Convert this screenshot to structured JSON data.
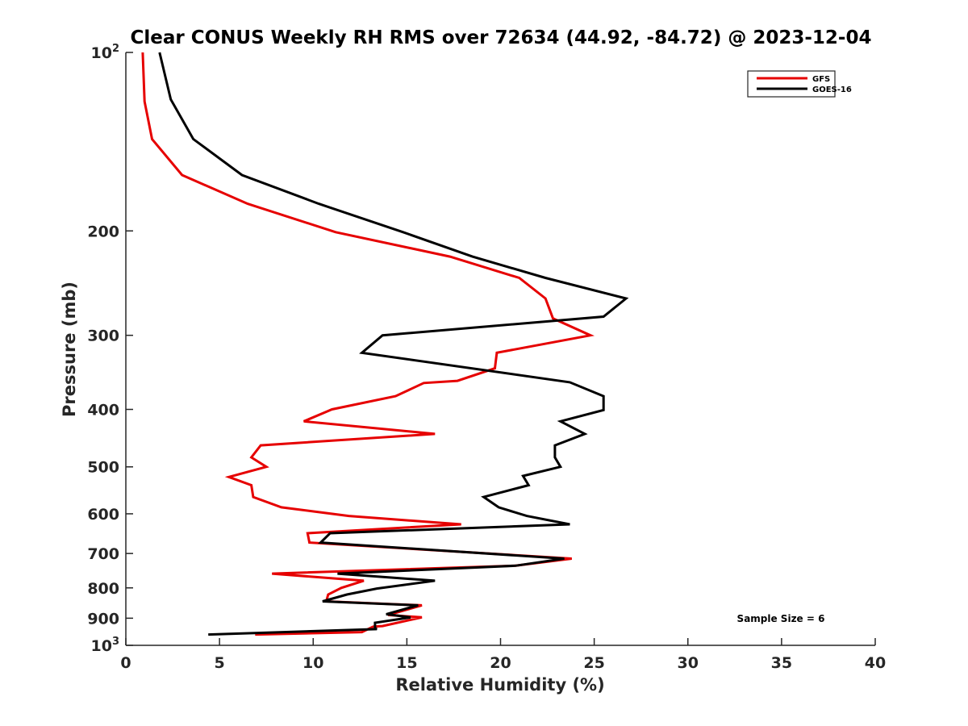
{
  "chart_data": {
    "type": "line",
    "title": "Clear CONUS Weekly RH RMS over 72634 (44.92, -84.72) @ 2023-12-04",
    "xlabel": "Relative Humidity (%)",
    "ylabel": "Pressure (mb)",
    "xlim": [
      0,
      40
    ],
    "ylim": [
      100,
      1000
    ],
    "yscale": "log",
    "y_reversed": true,
    "grid": false,
    "x_ticks": [
      0,
      5,
      10,
      15,
      20,
      25,
      30,
      35,
      40
    ],
    "x_tick_labels": [
      "0",
      "5",
      "10",
      "15",
      "20",
      "25",
      "30",
      "35",
      "40"
    ],
    "y_ticks": [
      100,
      200,
      300,
      400,
      500,
      600,
      700,
      800,
      900,
      1000
    ],
    "y_tick_labels": [
      {
        "base": "10",
        "sup": "2"
      },
      {
        "base": "200",
        "sup": ""
      },
      {
        "base": "300",
        "sup": ""
      },
      {
        "base": "400",
        "sup": ""
      },
      {
        "base": "500",
        "sup": ""
      },
      {
        "base": "600",
        "sup": ""
      },
      {
        "base": "700",
        "sup": ""
      },
      {
        "base": "800",
        "sup": ""
      },
      {
        "base": "900",
        "sup": ""
      },
      {
        "base": "10",
        "sup": "3"
      }
    ],
    "legend_placement": "top-right",
    "series": [
      {
        "name": "GFS",
        "color": "#e60000",
        "x": [
          0.9,
          1.0,
          1.4,
          3.0,
          6.5,
          11.2,
          17.3,
          21.0,
          22.4,
          22.8,
          24.8,
          19.8,
          19.7,
          17.7,
          15.9,
          14.4,
          11.0,
          9.5,
          16.5,
          7.2,
          6.7,
          7.5,
          5.5,
          6.7,
          6.8,
          8.3,
          11.9,
          17.9,
          9.7,
          9.8,
          23.8,
          20.8,
          7.8,
          12.7,
          11.5,
          10.8,
          10.7,
          15.8,
          14.0,
          15.8,
          13.7,
          13.2,
          12.6,
          6.9
        ],
        "y": [
          100,
          121,
          140,
          161,
          180,
          201,
          221,
          240,
          260,
          281,
          300,
          321,
          341,
          358,
          361,
          380,
          400,
          419,
          440,
          460,
          482,
          500,
          520,
          537,
          562,
          585,
          605,
          625,
          647,
          671,
          714,
          734,
          757,
          778,
          800,
          821,
          843,
          856,
          889,
          897,
          928,
          930,
          950,
          959
        ]
      },
      {
        "name": "GOES-16",
        "color": "#000000",
        "x": [
          1.8,
          2.4,
          3.6,
          6.2,
          10.3,
          14.8,
          18.5,
          22.4,
          26.7,
          25.5,
          13.7,
          12.6,
          23.7,
          25.5,
          25.5,
          23.2,
          24.5,
          22.9,
          22.9,
          23.2,
          21.2,
          21.5,
          19.1,
          19.9,
          21.4,
          23.7,
          10.9,
          10.4,
          23.4,
          20.8,
          11.3,
          16.5,
          13.4,
          11.8,
          10.5,
          15.6,
          13.9,
          15.2,
          13.3,
          13.3,
          13.4,
          4.4
        ],
        "y": [
          100,
          120,
          140,
          161,
          180,
          201,
          221,
          240,
          260,
          279,
          300,
          321,
          360,
          380,
          401,
          419,
          440,
          460,
          482,
          500,
          518,
          537,
          562,
          585,
          605,
          625,
          647,
          671,
          714,
          734,
          757,
          778,
          802,
          821,
          843,
          856,
          886,
          897,
          916,
          936,
          939,
          959
        ]
      }
    ],
    "annotations": [
      "Sample Size = 6"
    ]
  }
}
